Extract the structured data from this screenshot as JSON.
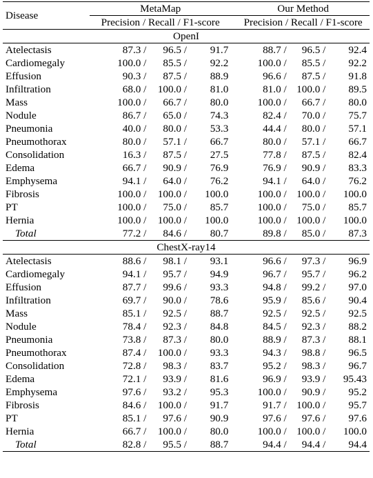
{
  "header": {
    "disease_label": "Disease",
    "group_a": "MetaMap",
    "group_b": "Our Method",
    "sub_a": "Precision / Recall / F1-score",
    "sub_b": "Precision / Recall / F1-score"
  },
  "sections": [
    {
      "title": "OpenI",
      "rows": [
        {
          "disease": "Atelectasis",
          "a": [
            "87.3 /",
            "96.5 /",
            "91.7"
          ],
          "b": [
            "88.7 /",
            "96.5 /",
            "92.4"
          ]
        },
        {
          "disease": "Cardiomegaly",
          "a": [
            "100.0 /",
            "85.5 /",
            "92.2"
          ],
          "b": [
            "100.0 /",
            "85.5 /",
            "92.2"
          ]
        },
        {
          "disease": "Effusion",
          "a": [
            "90.3 /",
            "87.5 /",
            "88.9"
          ],
          "b": [
            "96.6 /",
            "87.5 /",
            "91.8"
          ]
        },
        {
          "disease": "Infiltration",
          "a": [
            "68.0 /",
            "100.0 /",
            "81.0"
          ],
          "b": [
            "81.0 /",
            "100.0 /",
            "89.5"
          ]
        },
        {
          "disease": "Mass",
          "a": [
            "100.0 /",
            "66.7 /",
            "80.0"
          ],
          "b": [
            "100.0 /",
            "66.7 /",
            "80.0"
          ]
        },
        {
          "disease": "Nodule",
          "a": [
            "86.7 /",
            "65.0 /",
            "74.3"
          ],
          "b": [
            "82.4 /",
            "70.0 /",
            "75.7"
          ]
        },
        {
          "disease": "Pneumonia",
          "a": [
            "40.0 /",
            "80.0 /",
            "53.3"
          ],
          "b": [
            "44.4 /",
            "80.0 /",
            "57.1"
          ]
        },
        {
          "disease": "Pneumothorax",
          "a": [
            "80.0 /",
            "57.1 /",
            "66.7"
          ],
          "b": [
            "80.0 /",
            "57.1 /",
            "66.7"
          ]
        },
        {
          "disease": "Consolidation",
          "a": [
            "16.3 /",
            "87.5 /",
            "27.5"
          ],
          "b": [
            "77.8 /",
            "87.5 /",
            "82.4"
          ]
        },
        {
          "disease": "Edema",
          "a": [
            "66.7 /",
            "90.9 /",
            "76.9"
          ],
          "b": [
            "76.9 /",
            "90.9 /",
            "83.3"
          ]
        },
        {
          "disease": "Emphysema",
          "a": [
            "94.1 /",
            "64.0 /",
            "76.2"
          ],
          "b": [
            "94.1 /",
            "64.0 /",
            "76.2"
          ]
        },
        {
          "disease": "Fibrosis",
          "a": [
            "100.0 /",
            "100.0 /",
            "100.0"
          ],
          "b": [
            "100.0 /",
            "100.0 /",
            "100.0"
          ]
        },
        {
          "disease": "PT",
          "a": [
            "100.0 /",
            "75.0 /",
            "85.7"
          ],
          "b": [
            "100.0 /",
            "75.0 /",
            "85.7"
          ]
        },
        {
          "disease": "Hernia",
          "a": [
            "100.0 /",
            "100.0 /",
            "100.0"
          ],
          "b": [
            "100.0 /",
            "100.0 /",
            "100.0"
          ]
        }
      ],
      "total": {
        "disease": "Total",
        "a": [
          "77.2 /",
          "84.6 /",
          "80.7"
        ],
        "b": [
          "89.8 /",
          "85.0 /",
          "87.3"
        ]
      }
    },
    {
      "title": "ChestX-ray14",
      "rows": [
        {
          "disease": "Atelectasis",
          "a": [
            "88.6 /",
            "98.1 /",
            "93.1"
          ],
          "b": [
            "96.6 /",
            "97.3 /",
            "96.9"
          ]
        },
        {
          "disease": "Cardiomegaly",
          "a": [
            "94.1 /",
            "95.7 /",
            "94.9"
          ],
          "b": [
            "96.7 /",
            "95.7 /",
            "96.2"
          ]
        },
        {
          "disease": "Effusion",
          "a": [
            "87.7 /",
            "99.6 /",
            "93.3"
          ],
          "b": [
            "94.8 /",
            "99.2 /",
            "97.0"
          ]
        },
        {
          "disease": "Infiltration",
          "a": [
            "69.7 /",
            "90.0 /",
            "78.6"
          ],
          "b": [
            "95.9 /",
            "85.6 /",
            "90.4"
          ]
        },
        {
          "disease": "Mass",
          "a": [
            "85.1 /",
            "92.5 /",
            "88.7"
          ],
          "b": [
            "92.5 /",
            "92.5 /",
            "92.5"
          ]
        },
        {
          "disease": "Nodule",
          "a": [
            "78.4 /",
            "92.3 /",
            "84.8"
          ],
          "b": [
            "84.5 /",
            "92.3 /",
            "88.2"
          ]
        },
        {
          "disease": "Pneumonia",
          "a": [
            "73.8 /",
            "87.3 /",
            "80.0"
          ],
          "b": [
            "88.9 /",
            "87.3 /",
            "88.1"
          ]
        },
        {
          "disease": "Pneumothorax",
          "a": [
            "87.4 /",
            "100.0 /",
            "93.3"
          ],
          "b": [
            "94.3 /",
            "98.8 /",
            "96.5"
          ]
        },
        {
          "disease": "Consolidation",
          "a": [
            "72.8 /",
            "98.3 /",
            "83.7"
          ],
          "b": [
            "95.2 /",
            "98.3 /",
            "96.7"
          ]
        },
        {
          "disease": "Edema",
          "a": [
            "72.1 /",
            "93.9 /",
            "81.6"
          ],
          "b": [
            "96.9 /",
            "93.9 /",
            "95.43"
          ]
        },
        {
          "disease": "Emphysema",
          "a": [
            "97.6 /",
            "93.2 /",
            "95.3"
          ],
          "b": [
            "100.0 /",
            "90.9 /",
            "95.2"
          ]
        },
        {
          "disease": "Fibrosis",
          "a": [
            "84.6 /",
            "100.0 /",
            "91.7"
          ],
          "b": [
            "91.7 /",
            "100.0 /",
            "95.7"
          ]
        },
        {
          "disease": "PT",
          "a": [
            "85.1 /",
            "97.6 /",
            "90.9"
          ],
          "b": [
            "97.6 /",
            "97.6 /",
            "97.6"
          ]
        },
        {
          "disease": "Hernia",
          "a": [
            "66.7 /",
            "100.0 /",
            "80.0"
          ],
          "b": [
            "100.0 /",
            "100.0 /",
            "100.0"
          ]
        }
      ],
      "total": {
        "disease": "Total",
        "a": [
          "82.8 /",
          "95.5 /",
          "88.7"
        ],
        "b": [
          "94.4 /",
          "94.4 /",
          "94.4"
        ]
      }
    }
  ]
}
